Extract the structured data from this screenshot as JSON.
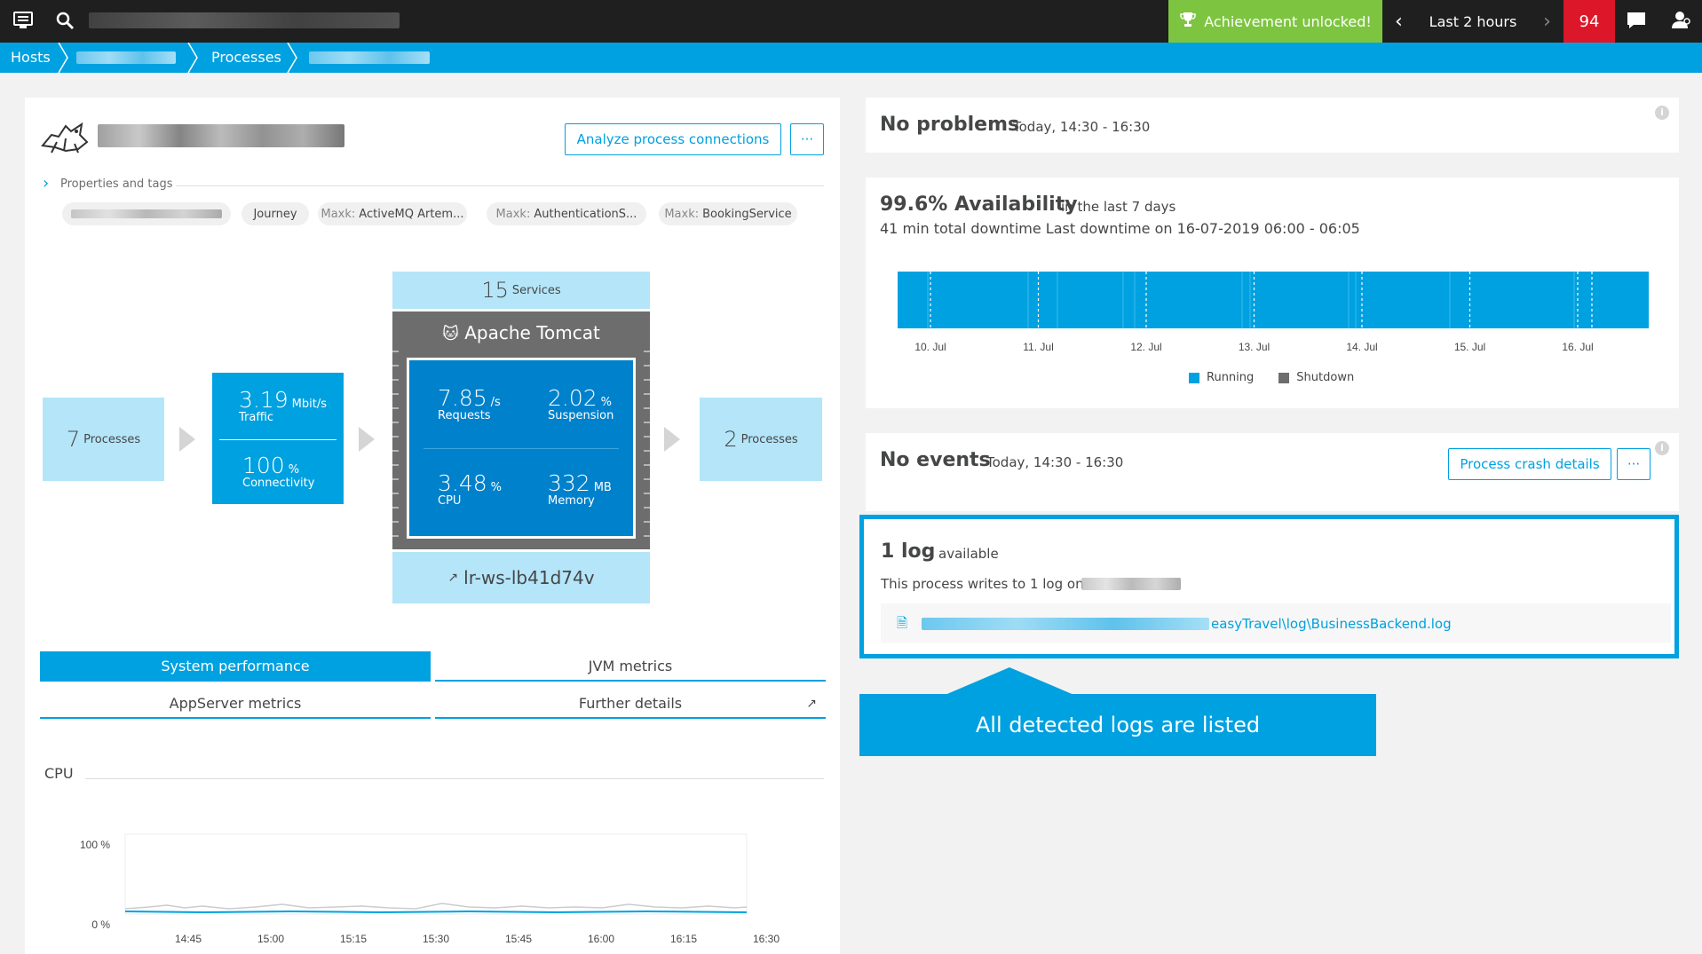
{
  "topbar": {
    "achievement_label": "Achievement unlocked!",
    "timeframe_label": "Last 2 hours",
    "problems_count": "94"
  },
  "breadcrumb": {
    "hosts": "Hosts",
    "processes": "Processes"
  },
  "process": {
    "properties_label": "Properties and tags",
    "analyze_button": "Analyze process connections",
    "more_button": "···",
    "tags": [
      {
        "text": "Journey"
      },
      {
        "key": "Maxk:",
        "value": "ActiveMQ Artem..."
      },
      {
        "key": "Maxk:",
        "value": "AuthenticationS..."
      },
      {
        "key": "Maxk:",
        "value": "BookingService"
      }
    ]
  },
  "flow": {
    "callers_count": "7",
    "callers_label": "Processes",
    "traffic_value": "3.19",
    "traffic_unit": "Mbit/s",
    "traffic_label": "Traffic",
    "connectivity_value": "100",
    "connectivity_unit": "%",
    "connectivity_label": "Connectivity",
    "services_count": "15",
    "services_label": "Services",
    "technology": "Apache Tomcat",
    "requests_value": "7.85",
    "requests_unit": "/s",
    "requests_label": "Requests",
    "suspension_value": "2.02",
    "suspension_unit": "%",
    "suspension_label": "Suspension",
    "cpu_value": "3.48",
    "cpu_unit": "%",
    "cpu_label": "CPU",
    "memory_value": "332",
    "memory_unit": "MB",
    "memory_label": "Memory",
    "host_name": "lr-ws-lb41d74v",
    "callees_count": "2",
    "callees_label": "Processes"
  },
  "tabs": {
    "system_performance": "System performance",
    "jvm_metrics": "JVM metrics",
    "appserver_metrics": "AppServer metrics",
    "further_details": "Further details"
  },
  "cpu_chart": {
    "title": "CPU",
    "y_ticks": [
      "100 %",
      "0 %"
    ],
    "x_ticks": [
      "14:45",
      "15:00",
      "15:15",
      "15:30",
      "15:45",
      "16:00",
      "16:15",
      "16:30"
    ]
  },
  "problems": {
    "title": "No problems",
    "timeframe": "Today, 14:30 - 16:30"
  },
  "availability": {
    "title": "99.6% Availability",
    "period": "in the last 7 days",
    "downtime": "41 min total downtime Last downtime on 16-07-2019 06:00 - 06:05",
    "x_ticks": [
      "10. Jul",
      "11. Jul",
      "12. Jul",
      "13. Jul",
      "14. Jul",
      "15. Jul",
      "16. Jul"
    ],
    "legend_running": "Running",
    "legend_shutdown": "Shutdown",
    "running_color": "#00a1e0",
    "shutdown_color": "#6d6d6d"
  },
  "events": {
    "title": "No events",
    "timeframe": "Today, 14:30 - 16:30",
    "crash_button": "Process crash details",
    "more_button": "···"
  },
  "logs": {
    "title": "1 log",
    "status": "available",
    "description": "This process writes to 1 log on",
    "log_path_suffix": "easyTravel\\log\\BusinessBackend.log"
  },
  "callout": {
    "text": "All detected logs are listed"
  }
}
